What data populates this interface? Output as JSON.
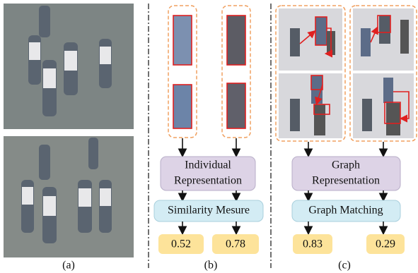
{
  "panel_b": {
    "representation": [
      "Individual",
      "Representation"
    ],
    "measure": "Similarity Mesure",
    "scores": [
      "0.52",
      "0.78"
    ]
  },
  "panel_c": {
    "representation": [
      "Graph",
      "Representation"
    ],
    "measure": "Graph Matching",
    "scores": [
      "0.83",
      "0.29"
    ]
  },
  "panel_labels": [
    "(a)",
    "(b)",
    "(c)"
  ]
}
